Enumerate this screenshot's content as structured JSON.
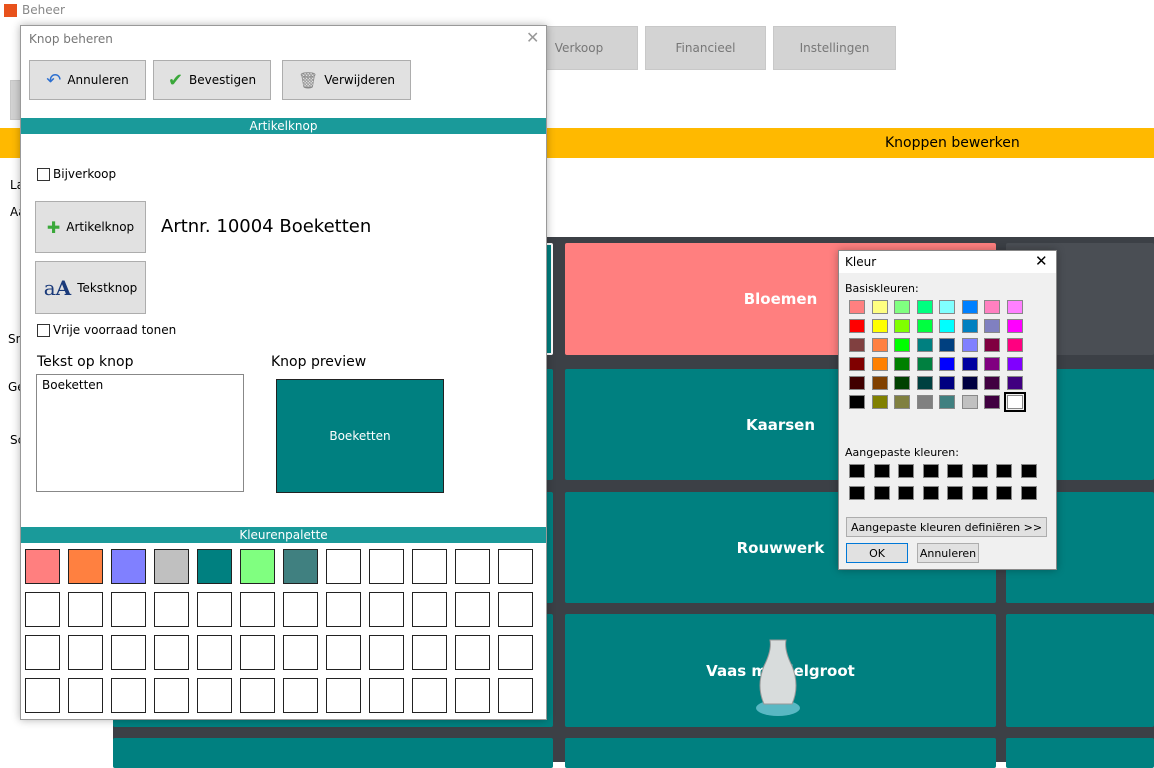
{
  "app": {
    "title": "Beheer",
    "tabs": [
      "Verkoop",
      "Financieel",
      "Instellingen"
    ],
    "banner": "Knoppen bewerken",
    "side_labels": [
      "La",
      "Aa",
      "Sn",
      "Ge",
      "Sc"
    ],
    "tiles": [
      {
        "label": "Bloemen",
        "color": "#ff7f7f"
      },
      {
        "label": "Kaarsen",
        "color": "#008080"
      },
      {
        "label": "Rouwwerk",
        "color": "#008080"
      },
      {
        "label": "Vaas middelgroot",
        "color": "#008080"
      }
    ]
  },
  "dialog": {
    "title": "Knop beheren",
    "buttons": [
      "Annuleren",
      "Bevestigen",
      "Verwijderen"
    ],
    "section": "Artikelknop",
    "checkbox_extra": "Bijverkoop",
    "article_button": "Artikelknop",
    "article_label": "Artnr. 10004 Boeketten",
    "text_button": "Tekstknop",
    "checkbox_stock": "Vrije voorraad tonen",
    "text_heading": "Tekst op knop",
    "text_value": "Boeketten",
    "preview_heading": "Knop preview",
    "preview_text": "Boeketten",
    "preview_color": "#008080",
    "palette_title": "Kleurenpalette",
    "palette": [
      [
        "#ff7f7f",
        "#ff8040",
        "#8080ff",
        "#c0c0c0",
        "#008080",
        "#80ff80",
        "#408080",
        null,
        null,
        null,
        null,
        null
      ],
      [
        null,
        null,
        null,
        null,
        null,
        null,
        null,
        null,
        null,
        null,
        null,
        null
      ],
      [
        null,
        null,
        null,
        null,
        null,
        null,
        null,
        null,
        null,
        null,
        null,
        null
      ],
      [
        null,
        null,
        null,
        null,
        null,
        null,
        null,
        null,
        null,
        null,
        null,
        null
      ]
    ]
  },
  "color_dialog": {
    "title": "Kleur",
    "basic_label": "Basiskleuren:",
    "basic": [
      [
        "#ff8080",
        "#ffff80",
        "#80ff80",
        "#00ff80",
        "#80ffff",
        "#0080ff",
        "#ff80c0",
        "#ff80ff"
      ],
      [
        "#ff0000",
        "#ffff00",
        "#80ff00",
        "#00ff40",
        "#00ffff",
        "#0080c0",
        "#8080c0",
        "#ff00ff"
      ],
      [
        "#804040",
        "#ff8040",
        "#00ff00",
        "#008080",
        "#004080",
        "#8080ff",
        "#800040",
        "#ff0080"
      ],
      [
        "#800000",
        "#ff8000",
        "#008000",
        "#008040",
        "#0000ff",
        "#0000a0",
        "#800080",
        "#8000ff"
      ],
      [
        "#400000",
        "#804000",
        "#004000",
        "#004040",
        "#000080",
        "#000040",
        "#400040",
        "#400080"
      ],
      [
        "#000000",
        "#808000",
        "#808040",
        "#808080",
        "#408080",
        "#c0c0c0",
        "#400040",
        "#ffffff"
      ]
    ],
    "custom_label": "Aangepaste kleuren:",
    "custom": [
      [
        "#000000",
        "#000000",
        "#000000",
        "#000000",
        "#000000",
        "#000000",
        "#000000",
        "#000000"
      ],
      [
        "#000000",
        "#000000",
        "#000000",
        "#000000",
        "#000000",
        "#000000",
        "#000000",
        "#000000"
      ]
    ],
    "define_button": "Aangepaste kleuren definiëren >>",
    "ok": "OK",
    "cancel": "Annuleren"
  }
}
